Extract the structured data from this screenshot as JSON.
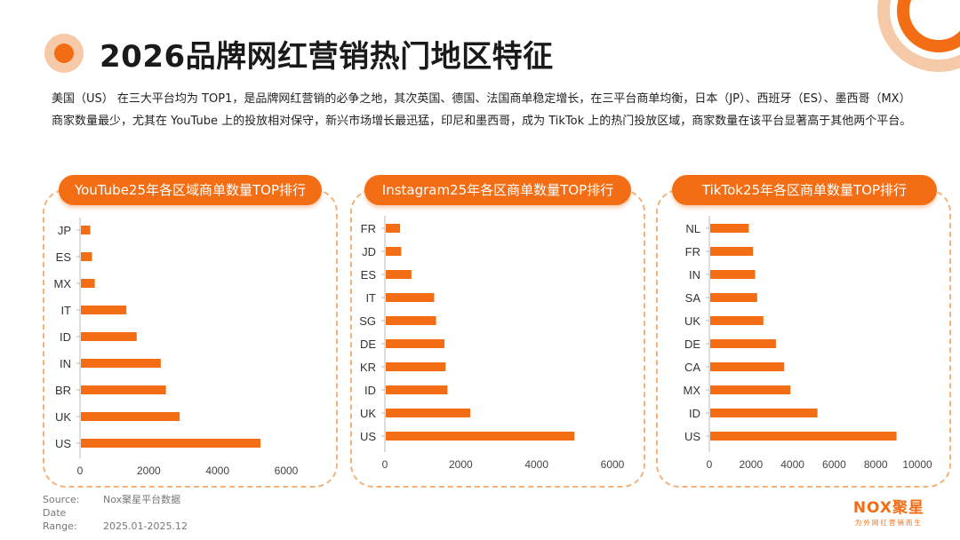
{
  "page": {
    "title": "2026品牌网红营销热门地区特征",
    "summary": "美国（US） 在三大平台均为 TOP1，是品牌网红营销的必争之地，其次英国、德国、法国商单稳定增长，在三平台商单均衡，日本（JP）、西班牙（ES）、墨西哥（MX）商家数量最少，尤其在 YouTube 上的投放相对保守，新兴市场增长最迅猛，印尼和墨西哥，成为 TikTok 上的热门投放区域，商家数量在该平台显著高于其他两个平台。"
  },
  "footer": {
    "source_label": "Source:",
    "source_value": "Nox聚星平台数据",
    "range_label": "Date Range:",
    "range_value": "2025.01-2025.12"
  },
  "logo": {
    "text": "NOX聚星",
    "tagline": "为外网红营销而生"
  },
  "colors": {
    "accent": "#f26d13",
    "accent_light": "#f6c9a9",
    "frame": "#f2b27a",
    "axis": "#bbbbbb"
  },
  "chart_data": [
    {
      "type": "bar",
      "orientation": "horizontal",
      "title": "YouTube25年各区域商单数量TOP排行",
      "categories": [
        "JP",
        "ES",
        "MX",
        "IT",
        "ID",
        "IN",
        "BR",
        "UK",
        "US"
      ],
      "values": [
        300,
        350,
        430,
        1350,
        1650,
        2350,
        2500,
        2900,
        5250
      ],
      "xlim": [
        0,
        6000
      ],
      "xticks": [
        "0",
        "2000",
        "4000",
        "6000"
      ],
      "grid": false,
      "legend": "none"
    },
    {
      "type": "bar",
      "orientation": "horizontal",
      "title": "Instagram25年各区商单数量TOP排行",
      "categories": [
        "FR",
        "JD",
        "ES",
        "IT",
        "SG",
        "DE",
        "KR",
        "ID",
        "UK",
        "US"
      ],
      "values": [
        400,
        430,
        700,
        1300,
        1350,
        1570,
        1600,
        1650,
        2250,
        5000
      ],
      "xlim": [
        0,
        6000
      ],
      "xticks": [
        "0",
        "2000",
        "4000",
        "6000"
      ],
      "grid": false,
      "legend": "none"
    },
    {
      "type": "bar",
      "orientation": "horizontal",
      "title": "TikTok25年各区商单数量TOP排行",
      "categories": [
        "NL",
        "FR",
        "IN",
        "SA",
        "UK",
        "DE",
        "CA",
        "MX",
        "ID",
        "US"
      ],
      "values": [
        1900,
        2100,
        2200,
        2300,
        2600,
        3200,
        3600,
        3900,
        5200,
        9000
      ],
      "xlim": [
        0,
        10000
      ],
      "xticks": [
        "0",
        "2000",
        "4000",
        "6000",
        "8000",
        "10000"
      ],
      "grid": false,
      "legend": "none"
    }
  ]
}
